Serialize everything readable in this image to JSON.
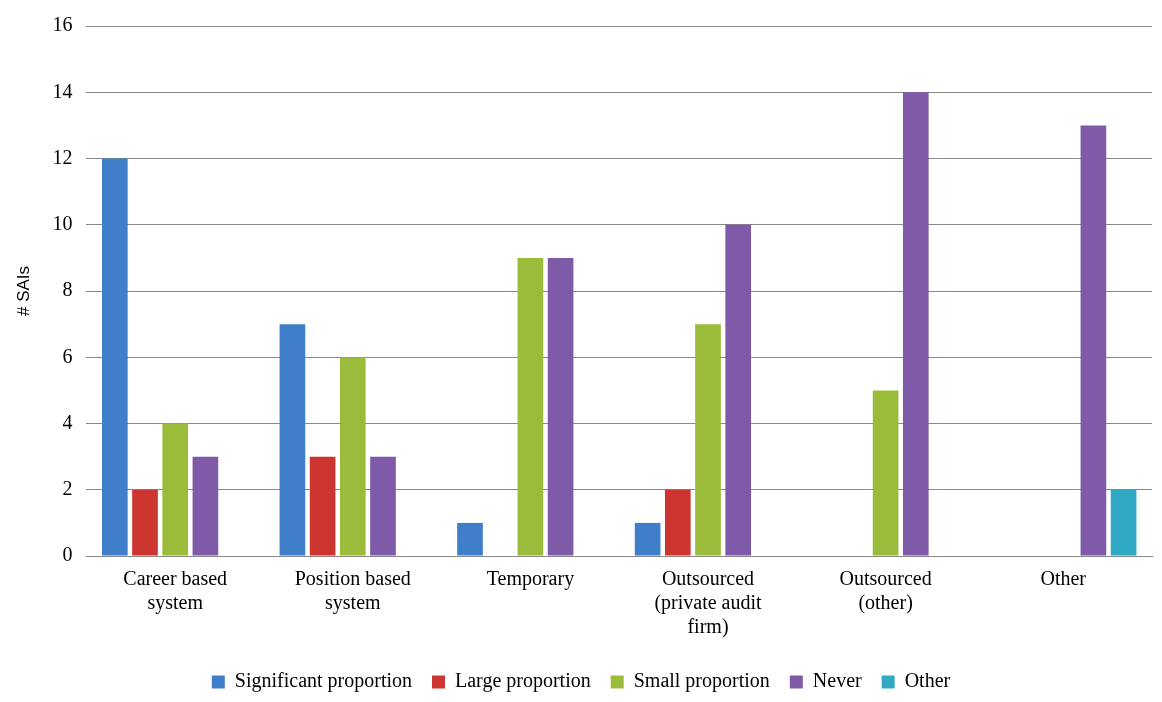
{
  "chart_data": {
    "type": "bar",
    "ylabel": "# SAIs",
    "categories": [
      "Career based system",
      "Position based system",
      "Temporary",
      "Outsourced (private audit firm)",
      "Outsourced (other)",
      "Other"
    ],
    "series": [
      {
        "name": "Significant proportion",
        "color": "#3f7fc9",
        "values": [
          12,
          7,
          1,
          1,
          0,
          0
        ]
      },
      {
        "name": "Large proportion",
        "color": "#cc3530",
        "values": [
          2,
          3,
          0,
          2,
          0,
          0
        ]
      },
      {
        "name": "Small proportion",
        "color": "#9bbb3b",
        "values": [
          4,
          6,
          9,
          7,
          5,
          0
        ]
      },
      {
        "name": "Never",
        "color": "#7f5aa8",
        "values": [
          3,
          3,
          9,
          10,
          14,
          13
        ]
      },
      {
        "name": "Other",
        "color": "#2fa9c4",
        "values": [
          0,
          0,
          0,
          0,
          0,
          2
        ]
      }
    ],
    "ylim": [
      0,
      16
    ],
    "yticks": [
      0,
      2,
      4,
      6,
      8,
      10,
      12,
      14,
      16
    ],
    "grid": "y",
    "legend": "bottom"
  }
}
